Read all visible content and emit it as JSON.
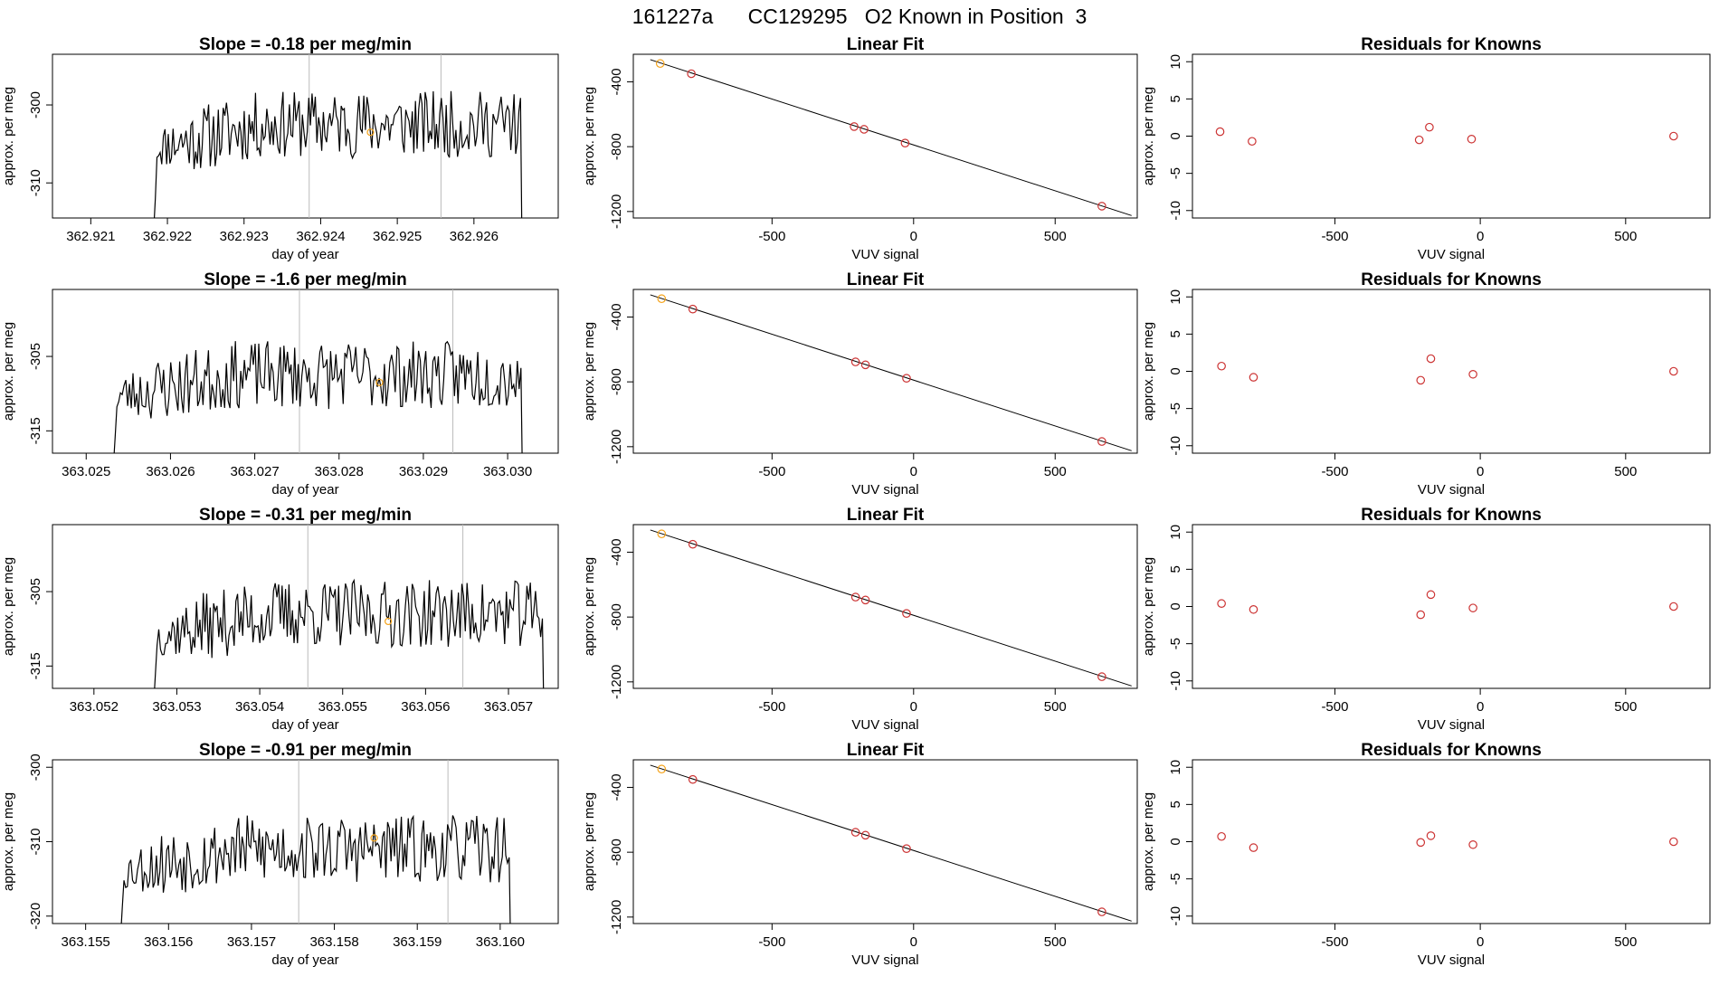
{
  "page_title": "161227a      CC129295   O2 Known in Position  3",
  "colors": {
    "trace": "#000000",
    "known_marker": "#f5a31a",
    "fit_point": "#cc3333",
    "residual_point": "#cc3333",
    "fit_line": "#000000",
    "vline": "#bbbbbb",
    "frame": "#000000"
  },
  "chart_data": [
    {
      "type": "line",
      "row": 1,
      "title": "Slope =  -0.18  per meg/min",
      "xlabel": "day of year",
      "ylabel": "approx. per meg",
      "xlim": [
        362.9205,
        362.9271
      ],
      "ylim": [
        -314.5,
        -293.5
      ],
      "xticks": [
        362.921,
        362.922,
        362.923,
        362.924,
        362.925,
        362.926
      ],
      "xticklabels": [
        "362.921",
        "362.922",
        "362.923",
        "362.924",
        "362.925",
        "362.926"
      ],
      "yticks": [
        -310,
        -300
      ],
      "yticklabels": [
        "-310",
        "-300"
      ],
      "x_start": 362.9218,
      "x_end": 362.92665,
      "baseline": -316,
      "level": -302.5,
      "noise": 3.6,
      "seed": 11,
      "vlines": [
        362.92385,
        362.92557
      ],
      "marker": {
        "x": 362.92465,
        "y": -303.5
      }
    },
    {
      "type": "line",
      "row": 2,
      "title": "Slope =  -1.6  per meg/min",
      "xlabel": "day of year",
      "ylabel": "approx. per meg",
      "xlim": [
        363.0246,
        363.0306
      ],
      "ylim": [
        -318,
        -296
      ],
      "xticks": [
        363.025,
        363.026,
        363.027,
        363.028,
        363.029,
        363.03
      ],
      "xticklabels": [
        "363.025",
        "363.026",
        "363.027",
        "363.028",
        "363.029",
        "363.030"
      ],
      "yticks": [
        -315,
        -305
      ],
      "yticklabels": [
        "-315",
        "-305"
      ],
      "x_start": 363.0253,
      "x_end": 363.0302,
      "baseline": -320,
      "level": -307.5,
      "noise": 3.8,
      "seed": 23,
      "vlines": [
        363.02753,
        363.02935
      ],
      "marker": {
        "x": 363.02848,
        "y": -308.5
      }
    },
    {
      "type": "line",
      "row": 3,
      "title": "Slope =  -0.31  per meg/min",
      "xlabel": "day of year",
      "ylabel": "approx. per meg",
      "xlim": [
        363.0515,
        363.0576
      ],
      "ylim": [
        -318,
        -296
      ],
      "xticks": [
        363.052,
        363.053,
        363.054,
        363.055,
        363.056,
        363.057
      ],
      "xticklabels": [
        "363.052",
        "363.053",
        "363.054",
        "363.055",
        "363.056",
        "363.057"
      ],
      "yticks": [
        -315,
        -305
      ],
      "yticklabels": [
        "-315",
        "-305"
      ],
      "x_start": 363.0527,
      "x_end": 363.05745,
      "baseline": -320,
      "level": -308,
      "noise": 3.8,
      "seed": 37,
      "vlines": [
        363.05458,
        363.05645
      ],
      "marker": {
        "x": 363.05555,
        "y": -309
      }
    },
    {
      "type": "line",
      "row": 4,
      "title": "Slope =  -0.91  per meg/min",
      "xlabel": "day of year",
      "ylabel": "approx. per meg",
      "xlim": [
        363.1546,
        363.1607
      ],
      "ylim": [
        -321,
        -299
      ],
      "xticks": [
        363.155,
        363.156,
        363.157,
        363.158,
        363.159,
        363.16
      ],
      "xticklabels": [
        "363.155",
        "363.156",
        "363.157",
        "363.158",
        "363.159",
        "363.160"
      ],
      "yticks": [
        -320,
        -310,
        -300
      ],
      "yticklabels": [
        "-320",
        "-310",
        "-300"
      ],
      "x_start": 363.1554,
      "x_end": 363.16015,
      "baseline": -323,
      "level": -311,
      "noise": 3.8,
      "seed": 53,
      "vlines": [
        363.15757,
        363.15937
      ],
      "marker": {
        "x": 363.15848,
        "y": -309.5
      }
    },
    {
      "type": "scatter",
      "row": 1,
      "title": "Linear Fit",
      "xlabel": "VUV signal",
      "ylabel": "approx. per meg",
      "xlim": [
        -990,
        790
      ],
      "ylim": [
        -1240,
        -230
      ],
      "xticks": [
        -500,
        0,
        500
      ],
      "xticklabels": [
        "-500",
        "0",
        "500"
      ],
      "yticks": [
        -1200,
        -800,
        -400
      ],
      "yticklabels": [
        "-1200",
        "-800",
        "-400"
      ],
      "fit_line": {
        "x": [
          -930,
          770
        ],
        "y": [
          -263,
          -1225
        ]
      },
      "points": [
        {
          "x": -895,
          "y": -287,
          "known": true
        },
        {
          "x": -785,
          "y": -350
        },
        {
          "x": -210,
          "y": -676
        },
        {
          "x": -175,
          "y": -693
        },
        {
          "x": -30,
          "y": -778
        },
        {
          "x": 665,
          "y": -1167
        }
      ]
    },
    {
      "type": "scatter",
      "row": 2,
      "title": "Linear Fit",
      "xlabel": "VUV signal",
      "ylabel": "approx. per meg",
      "xlim": [
        -990,
        790
      ],
      "ylim": [
        -1240,
        -230
      ],
      "xticks": [
        -500,
        0,
        500
      ],
      "xticklabels": [
        "-500",
        "0",
        "500"
      ],
      "yticks": [
        -1200,
        -800,
        -400
      ],
      "yticklabels": [
        "-1200",
        "-800",
        "-400"
      ],
      "fit_line": {
        "x": [
          -930,
          770
        ],
        "y": [
          -263,
          -1225
        ]
      },
      "points": [
        {
          "x": -890,
          "y": -287,
          "known": true
        },
        {
          "x": -780,
          "y": -351
        },
        {
          "x": -205,
          "y": -677
        },
        {
          "x": -170,
          "y": -695
        },
        {
          "x": -25,
          "y": -778
        },
        {
          "x": 665,
          "y": -1168
        }
      ]
    },
    {
      "type": "scatter",
      "row": 3,
      "title": "Linear Fit",
      "xlabel": "VUV signal",
      "ylabel": "approx. per meg",
      "xlim": [
        -990,
        790
      ],
      "ylim": [
        -1240,
        -230
      ],
      "xticks": [
        -500,
        0,
        500
      ],
      "xticklabels": [
        "-500",
        "0",
        "500"
      ],
      "yticks": [
        -1200,
        -800,
        -400
      ],
      "yticklabels": [
        "-1200",
        "-800",
        "-400"
      ],
      "fit_line": {
        "x": [
          -930,
          770
        ],
        "y": [
          -263,
          -1225
        ]
      },
      "points": [
        {
          "x": -890,
          "y": -287,
          "known": true
        },
        {
          "x": -780,
          "y": -351
        },
        {
          "x": -205,
          "y": -677
        },
        {
          "x": -170,
          "y": -695
        },
        {
          "x": -25,
          "y": -778
        },
        {
          "x": 665,
          "y": -1168
        }
      ]
    },
    {
      "type": "scatter",
      "row": 4,
      "title": "Linear Fit",
      "xlabel": "VUV signal",
      "ylabel": "approx. per meg",
      "xlim": [
        -990,
        790
      ],
      "ylim": [
        -1240,
        -230
      ],
      "xticks": [
        -500,
        0,
        500
      ],
      "xticklabels": [
        "-500",
        "0",
        "500"
      ],
      "yticks": [
        -1200,
        -800,
        -400
      ],
      "yticklabels": [
        "-1200",
        "-800",
        "-400"
      ],
      "fit_line": {
        "x": [
          -930,
          770
        ],
        "y": [
          -263,
          -1225
        ]
      },
      "points": [
        {
          "x": -890,
          "y": -287,
          "known": true
        },
        {
          "x": -780,
          "y": -351
        },
        {
          "x": -205,
          "y": -677
        },
        {
          "x": -170,
          "y": -695
        },
        {
          "x": -25,
          "y": -778
        },
        {
          "x": 665,
          "y": -1168
        }
      ]
    },
    {
      "type": "scatter",
      "row": 1,
      "title": "Residuals for Knowns",
      "xlabel": "VUV signal",
      "ylabel": "approx. per meg",
      "xlim": [
        -990,
        790
      ],
      "ylim": [
        -11,
        11
      ],
      "xticks": [
        -500,
        0,
        500
      ],
      "xticklabels": [
        "-500",
        "0",
        "500"
      ],
      "yticks": [
        -10,
        -5,
        0,
        5,
        10
      ],
      "yticklabels": [
        "-10",
        "-5",
        "0",
        "5",
        "10"
      ],
      "points": [
        {
          "x": -895,
          "y": 0.6
        },
        {
          "x": -785,
          "y": -0.7
        },
        {
          "x": -210,
          "y": -0.5
        },
        {
          "x": -175,
          "y": 1.2
        },
        {
          "x": -30,
          "y": -0.4
        },
        {
          "x": 665,
          "y": 0.0
        }
      ]
    },
    {
      "type": "scatter",
      "row": 2,
      "title": "Residuals for Knowns",
      "xlabel": "VUV signal",
      "ylabel": "approx. per meg",
      "xlim": [
        -990,
        790
      ],
      "ylim": [
        -11,
        11
      ],
      "xticks": [
        -500,
        0,
        500
      ],
      "xticklabels": [
        "-500",
        "0",
        "500"
      ],
      "yticks": [
        -10,
        -5,
        0,
        5,
        10
      ],
      "yticklabels": [
        "-10",
        "-5",
        "0",
        "5",
        "10"
      ],
      "points": [
        {
          "x": -890,
          "y": 0.7
        },
        {
          "x": -780,
          "y": -0.8
        },
        {
          "x": -205,
          "y": -1.2
        },
        {
          "x": -170,
          "y": 1.7
        },
        {
          "x": -25,
          "y": -0.4
        },
        {
          "x": 665,
          "y": 0.0
        }
      ]
    },
    {
      "type": "scatter",
      "row": 3,
      "title": "Residuals for Knowns",
      "xlabel": "VUV signal",
      "ylabel": "approx. per meg",
      "xlim": [
        -990,
        790
      ],
      "ylim": [
        -11,
        11
      ],
      "xticks": [
        -500,
        0,
        500
      ],
      "xticklabels": [
        "-500",
        "0",
        "500"
      ],
      "yticks": [
        -10,
        -5,
        0,
        5,
        10
      ],
      "yticklabels": [
        "-10",
        "-5",
        "0",
        "5",
        "10"
      ],
      "points": [
        {
          "x": -890,
          "y": 0.4
        },
        {
          "x": -780,
          "y": -0.4
        },
        {
          "x": -205,
          "y": -1.1
        },
        {
          "x": -170,
          "y": 1.6
        },
        {
          "x": -25,
          "y": -0.2
        },
        {
          "x": 665,
          "y": 0.0
        }
      ]
    },
    {
      "type": "scatter",
      "row": 4,
      "title": "Residuals for Knowns",
      "xlabel": "VUV signal",
      "ylabel": "approx. per meg",
      "xlim": [
        -990,
        790
      ],
      "ylim": [
        -11,
        11
      ],
      "xticks": [
        -500,
        0,
        500
      ],
      "xticklabels": [
        "-500",
        "0",
        "500"
      ],
      "yticks": [
        -10,
        -5,
        0,
        5,
        10
      ],
      "yticklabels": [
        "-10",
        "-5",
        "0",
        "5",
        "10"
      ],
      "points": [
        {
          "x": -890,
          "y": 0.7
        },
        {
          "x": -780,
          "y": -0.8
        },
        {
          "x": -205,
          "y": -0.1
        },
        {
          "x": -170,
          "y": 0.8
        },
        {
          "x": -25,
          "y": -0.4
        },
        {
          "x": 665,
          "y": 0.0
        }
      ]
    }
  ]
}
